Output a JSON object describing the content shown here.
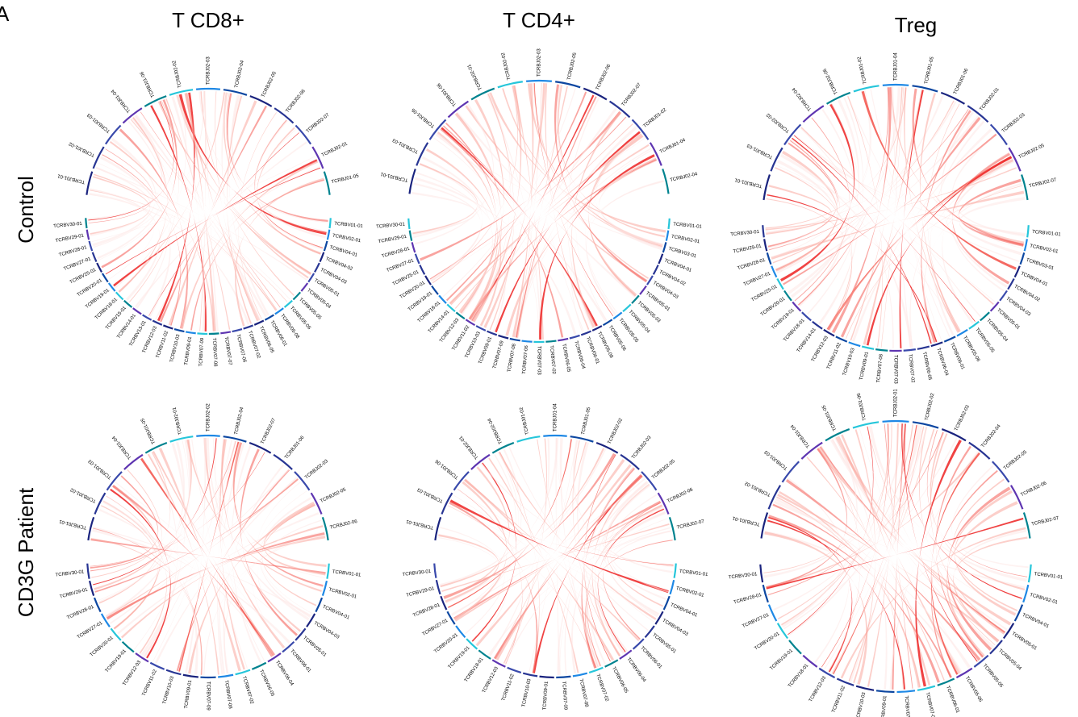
{
  "figure": {
    "panel_letter": "A",
    "columns": [
      "T CD8+",
      "T CD4+",
      "Treg"
    ],
    "rows": [
      "Control",
      "CD3G Patient"
    ]
  },
  "colors": {
    "chord_scale": [
      "#fde8e6",
      "#f9a89f",
      "#f45a52",
      "#ee2f2f"
    ],
    "segment_palette": [
      "#1a237e",
      "#283593",
      "#3949ab",
      "#5e35b1",
      "#00838f",
      "#26c6da",
      "#1e88e5",
      "#0d47a1"
    ]
  },
  "chart_data": {
    "type": "chord",
    "panels": [
      {
        "id": "control-cd8",
        "row": "Control",
        "column": "T CD8+",
        "j_segments": [
          "TCRBJ01-01",
          "TCRBJ01-02",
          "TCRBJ01-03",
          "TCRBJ01-04",
          "TCRBJ01-06",
          "TCRBJ02-02",
          "TCRBJ02-03",
          "TCRBJ02-04",
          "TCRBJ02-05",
          "TCRBJ02-06",
          "TCRBJ02-07",
          "TCRBJ02-01",
          "TCRBJ01-05"
        ],
        "v_segments": [
          "TCRBV01-01",
          "TCRBV02-01",
          "TCRBV04-01",
          "TCRBV04-02",
          "TCRBV04-03",
          "TCRBV05-01",
          "TCRBV05-04",
          "TCRBV05-05",
          "TCRBV05-06",
          "TCRBV05-08",
          "TCRBV06-01",
          "TCRBV06-05",
          "TCRBV07-02",
          "TCRBV07-06",
          "TCRBV07-07",
          "TCRBV07-08",
          "TCRBV07-09",
          "TCRBV09-01",
          "TCRBV10-03",
          "TCRBV11-02",
          "TCRBV12-03",
          "TCRBV13-01",
          "TCRBV14-01",
          "TCRBV15-01",
          "TCRBV18-01",
          "TCRBV19-01",
          "TCRBV20-01",
          "TCRBV25-01",
          "TCRBV27-01",
          "TCRBV28-01",
          "TCRBV29-01",
          "TCRBV30-01"
        ]
      },
      {
        "id": "control-cd4",
        "row": "Control",
        "column": "T CD4+",
        "j_segments": [
          "TCRBJ01-01",
          "TCRBJ01-03",
          "TCRBJ01-05",
          "TCRBJ01-06",
          "TCRBJ02-01",
          "TCRBJ02-02",
          "TCRBJ02-03",
          "TCRBJ02-05",
          "TCRBJ02-06",
          "TCRBJ02-07",
          "TCRBJ01-02",
          "TCRBJ01-04",
          "TCRBJ02-04"
        ],
        "v_segments": [
          "TCRBV01-01",
          "TCRBV02-01",
          "TCRBV03-01",
          "TCRBV04-01",
          "TCRBV04-02",
          "TCRBV04-03",
          "TCRBV05-01",
          "TCRBV05-03",
          "TCRBV05-04",
          "TCRBV05-05",
          "TCRBV05-06",
          "TCRBV05-08",
          "TCRBV06-01",
          "TCRBV06-04",
          "TCRBV06-05",
          "TCRBV07-02",
          "TCRBV07-03",
          "TCRBV07-06",
          "TCRBV07-08",
          "TCRBV07-09",
          "TCRBV09-01",
          "TCRBV10-03",
          "TCRBV11-02",
          "TCRBV12-03",
          "TCRBV14-01",
          "TCRBV18-01",
          "TCRBV19-01",
          "TCRBV20-01",
          "TCRBV25-01",
          "TCRBV27-01",
          "TCRBV28-01",
          "TCRBV29-01",
          "TCRBV30-01"
        ]
      },
      {
        "id": "control-treg",
        "row": "Control",
        "column": "Treg",
        "j_segments": [
          "TCRBJ01-01",
          "TCRBJ01-03",
          "TCRBJ02-02",
          "TCRBJ02-04",
          "TCRBJ02-06",
          "TCRBJ01-02",
          "TCRBJ01-04",
          "TCRBJ01-05",
          "TCRBJ01-06",
          "TCRBJ02-01",
          "TCRBJ02-03",
          "TCRBJ02-05",
          "TCRBJ02-07"
        ],
        "v_segments": [
          "TCRBV01-01",
          "TCRBV02-01",
          "TCRBV03-01",
          "TCRBV04-01",
          "TCRBV04-02",
          "TCRBV04-03",
          "TCRBV05-01",
          "TCRBV05-04",
          "TCRBV05-05",
          "TCRBV05-06",
          "TCRBV06-01",
          "TCRBV06-04",
          "TCRBV06-05",
          "TCRBV07-02",
          "TCRBV07-03",
          "TCRBV07-08",
          "TCRBV09-01",
          "TCRBV10-03",
          "TCRBV11-02",
          "TCRBV12-03",
          "TCRBV14-01",
          "TCRBV18-01",
          "TCRBV19-01",
          "TCRBV20-01",
          "TCRBV25-01",
          "TCRBV27-01",
          "TCRBV28-01",
          "TCRBV29-01",
          "TCRBV30-01"
        ]
      },
      {
        "id": "patient-cd8",
        "row": "CD3G Patient",
        "column": "T CD8+",
        "j_segments": [
          "TCRBJ01-01",
          "TCRBJ01-02",
          "TCRBJ01-03",
          "TCRBJ01-04",
          "TCRBJ01-05",
          "TCRBJ02-01",
          "TCRBJ02-02",
          "TCRBJ02-04",
          "TCRBJ02-07",
          "TCRBJ01-06",
          "TCRBJ02-03",
          "TCRBJ02-05",
          "TCRBJ02-06"
        ],
        "v_segments": [
          "TCRBV01-01",
          "TCRBV02-01",
          "TCRBV04-01",
          "TCRBV04-03",
          "TCRBV05-01",
          "TCRBV06-01",
          "TCRBV06-04",
          "TCRBV06-05",
          "TCRBV07-02",
          "TCRBV07-08",
          "TCRBV07-09",
          "TCRBV09-01",
          "TCRBV10-03",
          "TCRBV11-02",
          "TCRBV12-03",
          "TCRBV19-01",
          "TCRBV20-01",
          "TCRBV27-01",
          "TCRBV28-01",
          "TCRBV29-01",
          "TCRBV30-01"
        ]
      },
      {
        "id": "patient-cd4",
        "row": "CD3G Patient",
        "column": "T CD4+",
        "j_segments": [
          "TCRBJ01-01",
          "TCRBJ01-03",
          "TCRBJ01-06",
          "TCRBJ02-01",
          "TCRBJ02-04",
          "TCRBJ01-02",
          "TCRBJ01-04",
          "TCRBJ01-05",
          "TCRBJ02-02",
          "TCRBJ02-03",
          "TCRBJ02-05",
          "TCRBJ02-06",
          "TCRBJ02-07"
        ],
        "v_segments": [
          "TCRBV01-01",
          "TCRBV02-01",
          "TCRBV04-01",
          "TCRBV04-03",
          "TCRBV05-01",
          "TCRBV06-01",
          "TCRBV06-04",
          "TCRBV06-05",
          "TCRBV07-02",
          "TCRBV07-08",
          "TCRBV07-09",
          "TCRBV09-01",
          "TCRBV10-03",
          "TCRBV11-02",
          "TCRBV12-03",
          "TCRBV18-01",
          "TCRBV19-01",
          "TCRBV20-01",
          "TCRBV27-01",
          "TCRBV28-01",
          "TCRBV29-01",
          "TCRBV30-01"
        ]
      },
      {
        "id": "patient-treg",
        "row": "CD3G Patient",
        "column": "Treg",
        "j_segments": [
          "TCRBJ01-01",
          "TCRBJ01-02",
          "TCRBJ01-03",
          "TCRBJ01-04",
          "TCRBJ01-05",
          "TCRBJ01-06",
          "TCRBJ02-01",
          "TCRBJ02-02",
          "TCRBJ02-03",
          "TCRBJ02-04",
          "TCRBJ02-05",
          "TCRBJ02-06",
          "TCRBJ02-07"
        ],
        "v_segments": [
          "TCRBV01-01",
          "TCRBV02-01",
          "TCRBV04-01",
          "TCRBV05-01",
          "TCRBV05-04",
          "TCRBV05-05",
          "TCRBV05-06",
          "TCRBV06-01",
          "TCRBV07-02",
          "TCRBV07-08",
          "TCRBV09-01",
          "TCRBV10-03",
          "TCRBV11-02",
          "TCRBV12-03",
          "TCRBV18-01",
          "TCRBV19-01",
          "TCRBV20-01",
          "TCRBV27-01",
          "TCRBV28-01",
          "TCRBV30-01"
        ]
      }
    ]
  }
}
